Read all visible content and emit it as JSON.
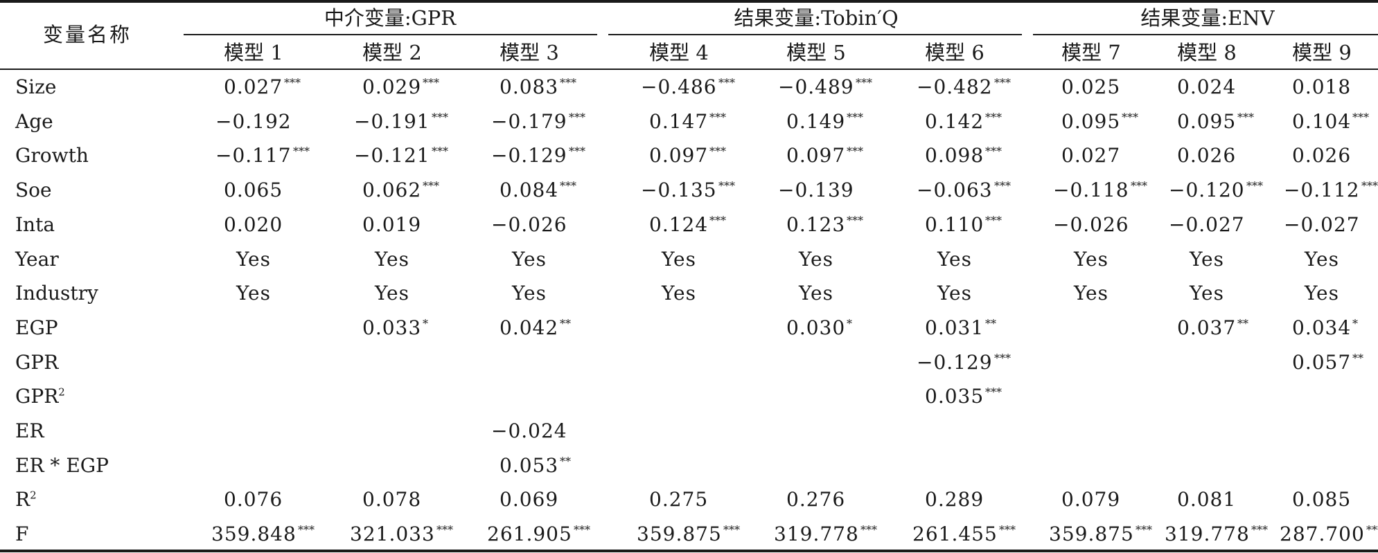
{
  "header": {
    "var_name": "变量名称",
    "groups": [
      {
        "label": "中介变量:GPR"
      },
      {
        "label": "结果变量:Tobin′Q"
      },
      {
        "label": "结果变量:ENV"
      }
    ],
    "models": [
      "模型 1",
      "模型 2",
      "模型 3",
      "模型 4",
      "模型 5",
      "模型 6",
      "模型 7",
      "模型 8",
      "模型 9"
    ]
  },
  "rows": [
    {
      "label": "Size",
      "cells": [
        [
          "0.027",
          "***"
        ],
        [
          "0.029",
          "***"
        ],
        [
          "0.083",
          "***"
        ],
        [
          "−0.486",
          "***"
        ],
        [
          "−0.489",
          "***"
        ],
        [
          "−0.482",
          "***"
        ],
        [
          "0.025",
          ""
        ],
        [
          "0.024",
          ""
        ],
        [
          "0.018",
          ""
        ]
      ]
    },
    {
      "label": "Age",
      "cells": [
        [
          "−0.192",
          ""
        ],
        [
          "−0.191",
          "***"
        ],
        [
          "−0.179",
          "***"
        ],
        [
          "0.147",
          "***"
        ],
        [
          "0.149",
          "***"
        ],
        [
          "0.142",
          "***"
        ],
        [
          "0.095",
          "***"
        ],
        [
          "0.095",
          "***"
        ],
        [
          "0.104",
          "***"
        ]
      ]
    },
    {
      "label": "Growth",
      "cells": [
        [
          "−0.117",
          "***"
        ],
        [
          "−0.121",
          "***"
        ],
        [
          "−0.129",
          "***"
        ],
        [
          "0.097",
          "***"
        ],
        [
          "0.097",
          "***"
        ],
        [
          "0.098",
          "***"
        ],
        [
          "0.027",
          ""
        ],
        [
          "0.026",
          ""
        ],
        [
          "0.026",
          ""
        ]
      ]
    },
    {
      "label": "Soe",
      "cells": [
        [
          "0.065",
          ""
        ],
        [
          "0.062",
          "***"
        ],
        [
          "0.084",
          "***"
        ],
        [
          "−0.135",
          "***"
        ],
        [
          "−0.139",
          ""
        ],
        [
          "−0.063",
          "***"
        ],
        [
          "−0.118",
          "***"
        ],
        [
          "−0.120",
          "***"
        ],
        [
          "−0.112",
          "***"
        ]
      ]
    },
    {
      "label": "Inta",
      "cells": [
        [
          "0.020",
          ""
        ],
        [
          "0.019",
          ""
        ],
        [
          "−0.026",
          ""
        ],
        [
          "0.124",
          "***"
        ],
        [
          "0.123",
          "***"
        ],
        [
          "0.110",
          "***"
        ],
        [
          "−0.026",
          ""
        ],
        [
          "−0.027",
          ""
        ],
        [
          "−0.027",
          ""
        ]
      ]
    },
    {
      "label": "Year",
      "cells": [
        [
          "Yes",
          ""
        ],
        [
          "Yes",
          ""
        ],
        [
          "Yes",
          ""
        ],
        [
          "Yes",
          ""
        ],
        [
          "Yes",
          ""
        ],
        [
          "Yes",
          ""
        ],
        [
          "Yes",
          ""
        ],
        [
          "Yes",
          ""
        ],
        [
          "Yes",
          ""
        ]
      ]
    },
    {
      "label": "Industry",
      "cells": [
        [
          "Yes",
          ""
        ],
        [
          "Yes",
          ""
        ],
        [
          "Yes",
          ""
        ],
        [
          "Yes",
          ""
        ],
        [
          "Yes",
          ""
        ],
        [
          "Yes",
          ""
        ],
        [
          "Yes",
          ""
        ],
        [
          "Yes",
          ""
        ],
        [
          "Yes",
          ""
        ]
      ]
    },
    {
      "label": "EGP",
      "cells": [
        [
          "",
          ""
        ],
        [
          "0.033",
          "*"
        ],
        [
          "0.042",
          "**"
        ],
        [
          "",
          ""
        ],
        [
          "0.030",
          "*"
        ],
        [
          "0.031",
          "**"
        ],
        [
          "",
          ""
        ],
        [
          "0.037",
          "**"
        ],
        [
          "0.034",
          "*"
        ]
      ]
    },
    {
      "label": "GPR",
      "cells": [
        [
          "",
          ""
        ],
        [
          "",
          ""
        ],
        [
          "",
          ""
        ],
        [
          "",
          ""
        ],
        [
          "",
          ""
        ],
        [
          "−0.129",
          "***"
        ],
        [
          "",
          ""
        ],
        [
          "",
          ""
        ],
        [
          "0.057",
          "**"
        ]
      ]
    },
    {
      "label": "GPR",
      "sup": "2",
      "cells": [
        [
          "",
          ""
        ],
        [
          "",
          ""
        ],
        [
          "",
          ""
        ],
        [
          "",
          ""
        ],
        [
          "",
          ""
        ],
        [
          "0.035",
          "***"
        ],
        [
          "",
          ""
        ],
        [
          "",
          ""
        ],
        [
          "",
          ""
        ]
      ]
    },
    {
      "label": "ER",
      "cells": [
        [
          "",
          ""
        ],
        [
          "",
          ""
        ],
        [
          "−0.024",
          ""
        ],
        [
          "",
          ""
        ],
        [
          "",
          ""
        ],
        [
          "",
          ""
        ],
        [
          "",
          ""
        ],
        [
          "",
          ""
        ],
        [
          "",
          ""
        ]
      ]
    },
    {
      "label": "ER * EGP",
      "cells": [
        [
          "",
          ""
        ],
        [
          "",
          ""
        ],
        [
          "0.053",
          "**"
        ],
        [
          "",
          ""
        ],
        [
          "",
          ""
        ],
        [
          "",
          ""
        ],
        [
          "",
          ""
        ],
        [
          "",
          ""
        ],
        [
          "",
          ""
        ]
      ]
    },
    {
      "label": "R",
      "sup": "2",
      "cells": [
        [
          "0.076",
          ""
        ],
        [
          "0.078",
          ""
        ],
        [
          "0.069",
          ""
        ],
        [
          "0.275",
          ""
        ],
        [
          "0.276",
          ""
        ],
        [
          "0.289",
          ""
        ],
        [
          "0.079",
          ""
        ],
        [
          "0.081",
          ""
        ],
        [
          "0.085",
          ""
        ]
      ]
    },
    {
      "label": "F",
      "cells": [
        [
          "359.848",
          "***"
        ],
        [
          "321.033",
          "***"
        ],
        [
          "261.905",
          "***"
        ],
        [
          "359.875",
          "***"
        ],
        [
          "319.778",
          "***"
        ],
        [
          "261.455",
          "***"
        ],
        [
          "359.875",
          "***"
        ],
        [
          "319.778",
          "***"
        ],
        [
          "287.700",
          "***"
        ]
      ]
    }
  ]
}
